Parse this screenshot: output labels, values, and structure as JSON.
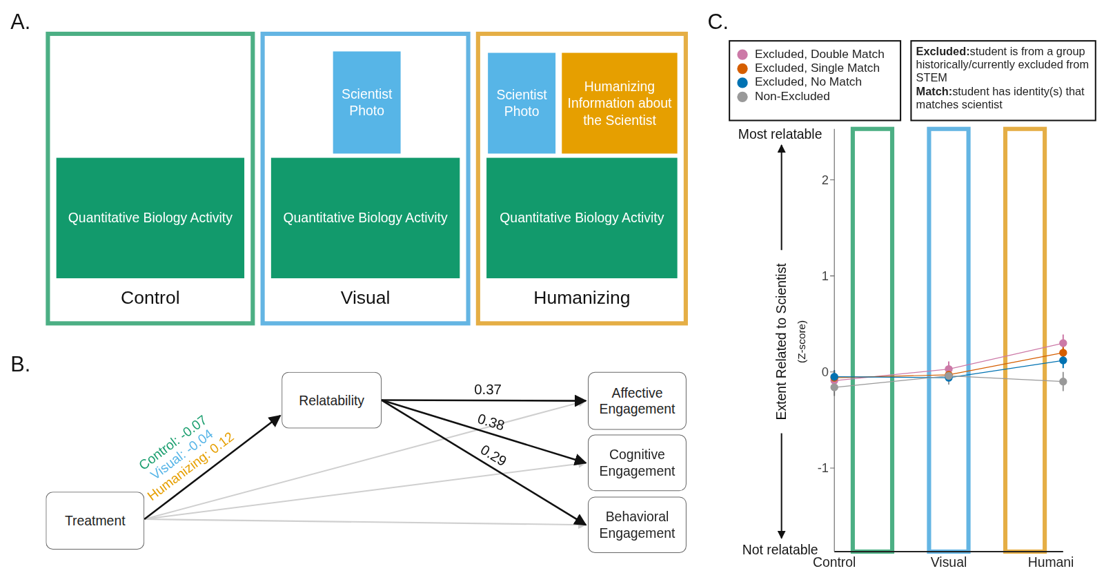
{
  "panel_a": {
    "label": "A.",
    "conditions": [
      {
        "name": "Control",
        "color": "#4caf84",
        "elements": [
          {
            "text": "Quantitative Biology Activity",
            "color": "#129a6c"
          }
        ]
      },
      {
        "name": "Visual",
        "color": "#64b5e3",
        "elements": [
          {
            "text": "Scientist Photo",
            "color": "#57b5e7"
          },
          {
            "text": "Quantitative Biology Activity",
            "color": "#129a6c"
          }
        ]
      },
      {
        "name": "Humanizing",
        "color": "#e5ae45",
        "elements": [
          {
            "text": "Scientist Photo",
            "color": "#57b5e7"
          },
          {
            "text": "Humanizing Information about the Scientist",
            "color": "#e69f00"
          },
          {
            "text": "Quantitative Biology Activity",
            "color": "#129a6c"
          }
        ]
      }
    ]
  },
  "panel_b": {
    "label": "B.",
    "nodes": {
      "treatment": "Treatment",
      "mediator": "Relatability",
      "outcomes": [
        "Affective Engagement",
        "Cognitive Engagement",
        "Behavioral Engagement"
      ]
    },
    "treatment_effects": [
      {
        "text": "Control: -0.07",
        "color": "#1a9e6e"
      },
      {
        "text": "Visual: -0.04",
        "color": "#57b5e7"
      },
      {
        "text": "Humanizing: 0.12",
        "color": "#e69f00"
      }
    ],
    "paths": [
      "0.37",
      "0.38",
      "0.29"
    ]
  },
  "chart_data": {
    "type": "line",
    "panel_label": "C.",
    "y_label": "Extent Related to Scientist",
    "y_sublabel": "(Z-score)",
    "annotations": [
      "Most relatable",
      "Not relatable"
    ],
    "definitions": [
      {
        "term": "Excluded:",
        "text": "student is from a group historically/currently excluded from STEM"
      },
      {
        "term": "Match:",
        "text": "student has identity(s) that matches scientist"
      }
    ],
    "categories": [
      "Control",
      "Visual",
      "Humanizing"
    ],
    "series": [
      {
        "name": "Excluded, Double Match",
        "color": "#cc79a7",
        "values": [
          -0.09,
          0.03,
          0.3
        ],
        "errors": [
          0.08,
          0.08,
          0.09
        ]
      },
      {
        "name": "Excluded, Single Match",
        "color": "#d55e00",
        "values": [
          -0.06,
          -0.03,
          0.2
        ],
        "errors": [
          0.07,
          0.07,
          0.08
        ]
      },
      {
        "name": "Excluded, No Match",
        "color": "#0072b2",
        "values": [
          -0.05,
          -0.06,
          0.12
        ],
        "errors": [
          0.07,
          0.07,
          0.08
        ]
      },
      {
        "name": "Non-Excluded",
        "color": "#999999",
        "values": [
          -0.16,
          -0.04,
          -0.1
        ],
        "errors": [
          0.09,
          0.09,
          0.1
        ]
      }
    ],
    "ylim": [
      -1.87,
      2.53
    ],
    "yticks": [
      -1,
      0,
      1,
      2
    ],
    "grid": false,
    "legend": "top",
    "marker": "circle",
    "line_style": "solid"
  }
}
